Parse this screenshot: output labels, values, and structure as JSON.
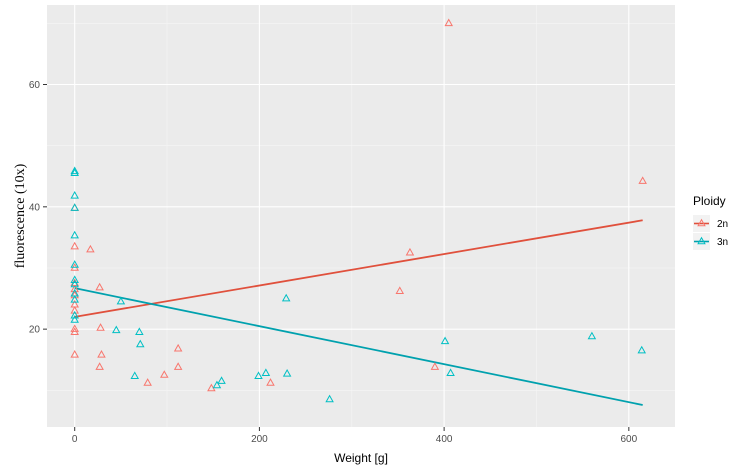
{
  "chart_data": {
    "type": "scatter",
    "title": "",
    "xlabel": "Weight [g]",
    "ylabel": "fluorescence (10x)",
    "xlim": [
      -30,
      650
    ],
    "ylim": [
      4,
      73
    ],
    "x_ticks": [
      0,
      200,
      400,
      600
    ],
    "x_tick_labels": [
      "0",
      "200",
      "400",
      "600"
    ],
    "y_ticks": [
      20,
      40,
      60
    ],
    "y_tick_labels": [
      "20",
      "40",
      "60"
    ],
    "grid": true,
    "marker": "open-triangle",
    "legend": {
      "title": "Ploidy",
      "position": "right"
    },
    "series": [
      {
        "name": "2n",
        "color": "#F8766D",
        "line_color": "#E0503C",
        "fit": {
          "x": [
            0,
            615
          ],
          "y": [
            22.0,
            37.8
          ]
        },
        "points": [
          {
            "x": 0,
            "y": 15.8
          },
          {
            "x": 0,
            "y": 19.5
          },
          {
            "x": 0,
            "y": 20.0
          },
          {
            "x": 0,
            "y": 23.0
          },
          {
            "x": 0,
            "y": 24.0
          },
          {
            "x": 0,
            "y": 25.5
          },
          {
            "x": 0,
            "y": 26.5
          },
          {
            "x": 0,
            "y": 27.5
          },
          {
            "x": 0,
            "y": 30.0
          },
          {
            "x": 0,
            "y": 33.5
          },
          {
            "x": 0,
            "y": 39.8
          },
          {
            "x": 17,
            "y": 33.0
          },
          {
            "x": 27,
            "y": 26.8
          },
          {
            "x": 27,
            "y": 13.8
          },
          {
            "x": 28,
            "y": 20.2
          },
          {
            "x": 29,
            "y": 15.8
          },
          {
            "x": 79,
            "y": 11.2
          },
          {
            "x": 97,
            "y": 12.5
          },
          {
            "x": 112,
            "y": 13.8
          },
          {
            "x": 112,
            "y": 16.8
          },
          {
            "x": 148,
            "y": 10.3
          },
          {
            "x": 212,
            "y": 11.2
          },
          {
            "x": 352,
            "y": 26.2
          },
          {
            "x": 363,
            "y": 32.5
          },
          {
            "x": 390,
            "y": 13.8
          },
          {
            "x": 405,
            "y": 70.0
          },
          {
            "x": 615,
            "y": 44.2
          }
        ]
      },
      {
        "name": "3n",
        "color": "#00BFC4",
        "line_color": "#00A1AE",
        "fit": {
          "x": [
            0,
            615
          ],
          "y": [
            26.7,
            7.6
          ]
        },
        "points": [
          {
            "x": 0,
            "y": 21.5
          },
          {
            "x": 0,
            "y": 22.2
          },
          {
            "x": 0,
            "y": 24.8
          },
          {
            "x": 0,
            "y": 25.8
          },
          {
            "x": 0,
            "y": 27.3
          },
          {
            "x": 0,
            "y": 28.0
          },
          {
            "x": 0,
            "y": 30.5
          },
          {
            "x": 0,
            "y": 35.3
          },
          {
            "x": 0,
            "y": 39.8
          },
          {
            "x": 0,
            "y": 41.8
          },
          {
            "x": 0,
            "y": 45.5
          },
          {
            "x": 0,
            "y": 45.8
          },
          {
            "x": 45,
            "y": 19.8
          },
          {
            "x": 50,
            "y": 24.5
          },
          {
            "x": 65,
            "y": 12.3
          },
          {
            "x": 70,
            "y": 19.5
          },
          {
            "x": 71,
            "y": 17.5
          },
          {
            "x": 154,
            "y": 10.8
          },
          {
            "x": 159,
            "y": 11.5
          },
          {
            "x": 199,
            "y": 12.3
          },
          {
            "x": 207,
            "y": 12.8
          },
          {
            "x": 229,
            "y": 25.0
          },
          {
            "x": 230,
            "y": 12.7
          },
          {
            "x": 276,
            "y": 8.5
          },
          {
            "x": 401,
            "y": 18.0
          },
          {
            "x": 407,
            "y": 12.8
          },
          {
            "x": 560,
            "y": 18.8
          },
          {
            "x": 614,
            "y": 16.5
          }
        ]
      }
    ]
  }
}
